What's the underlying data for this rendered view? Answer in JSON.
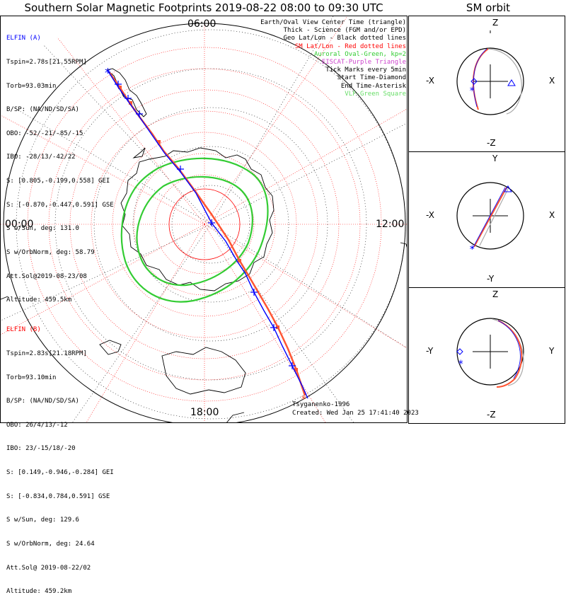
{
  "title": "Southern Solar Magnetic Footprints 2019-08-22 08:00 to 09:30 UTC",
  "orbit_title": "SM orbit",
  "clock_labels": {
    "top": "06:00",
    "left": "00:00",
    "right": "12:00",
    "bottom": "18:00"
  },
  "legend": [
    {
      "text": "Earth/Oval View Center Time (triangle)",
      "color": "#000000"
    },
    {
      "text": "Thick - Science (FGM and/or EPD)",
      "color": "#000000"
    },
    {
      "text": "Geo Lat/Lon - Black dotted lines",
      "color": "#000000"
    },
    {
      "text": "SM Lat/Lon - Red dotted lines",
      "color": "#ff0000"
    },
    {
      "text": "Auroral Oval-Green, kp=2",
      "color": "#33cc33"
    },
    {
      "text": "EISCAT-Purple Triangle",
      "color": "#cc44cc"
    },
    {
      "text": "Tick Marks every 5min",
      "color": "#000000"
    },
    {
      "text": "Start Time-Diamond",
      "color": "#000000"
    },
    {
      "text": "End Time-Asterisk",
      "color": "#000000"
    },
    {
      "text": "VLF-Green Square",
      "color": "#66dd66"
    }
  ],
  "elfin_a": {
    "color": "#0000ff",
    "lines": [
      "ELFIN (A)",
      "Tspin=2.78s[21.55RPM]",
      "Torb=93.03min",
      "B/SP: (NA/ND/SD/SA)",
      "OBO: -52/-21/-85/-15",
      "IBO: -28/13/-42/22",
      "S: [0.805,-0.199,0.558] GEI",
      "S: [-0.870,-0.447,0.591] GSE",
      "S w/Sun, deg: 131.0",
      "S w/OrbNorm, deg: 58.79",
      "Att.Sol@2019-08-23/08",
      "Altitude: 459.5km"
    ]
  },
  "elfin_b": {
    "color": "#ff0000",
    "lines": [
      "ELFIN (B)",
      "Tspin=2.83s[21.18RPM]",
      "Torb=93.10min",
      "B/SP: (NA/ND/SD/SA)",
      "OBO: 26/4/13/-12",
      "IBO: 23/-15/18/-20",
      "S: [0.149,-0.946,-0.284] GEI",
      "S: [-0.834,0.784,0.591] GSE",
      "S w/Sun, deg: 129.6",
      "S w/OrbNorm, deg: 24.64",
      "Att.Sol@ 2019-08-22/02",
      "Altitude: 459.2km"
    ]
  },
  "credits": {
    "model": "Tsyganenko-1996",
    "created": "Created: Wed Jan 25 17:41:40 2023"
  },
  "orbit_panels": [
    {
      "top": "Z",
      "bottom": "-Z",
      "left": "-X",
      "right": "X"
    },
    {
      "top": "Y",
      "bottom": "-Y",
      "left": "-X",
      "right": "X"
    },
    {
      "top": "Z",
      "bottom": "-Z",
      "left": "-Y",
      "right": "Y"
    }
  ],
  "colors": {
    "elfin_a": "#0000ff",
    "elfin_b": "#ff5533",
    "oval": "#33cc33",
    "sm_grid": "#ff0000",
    "geo_grid": "#000000",
    "orbit_grey": "#aaaaaa"
  }
}
